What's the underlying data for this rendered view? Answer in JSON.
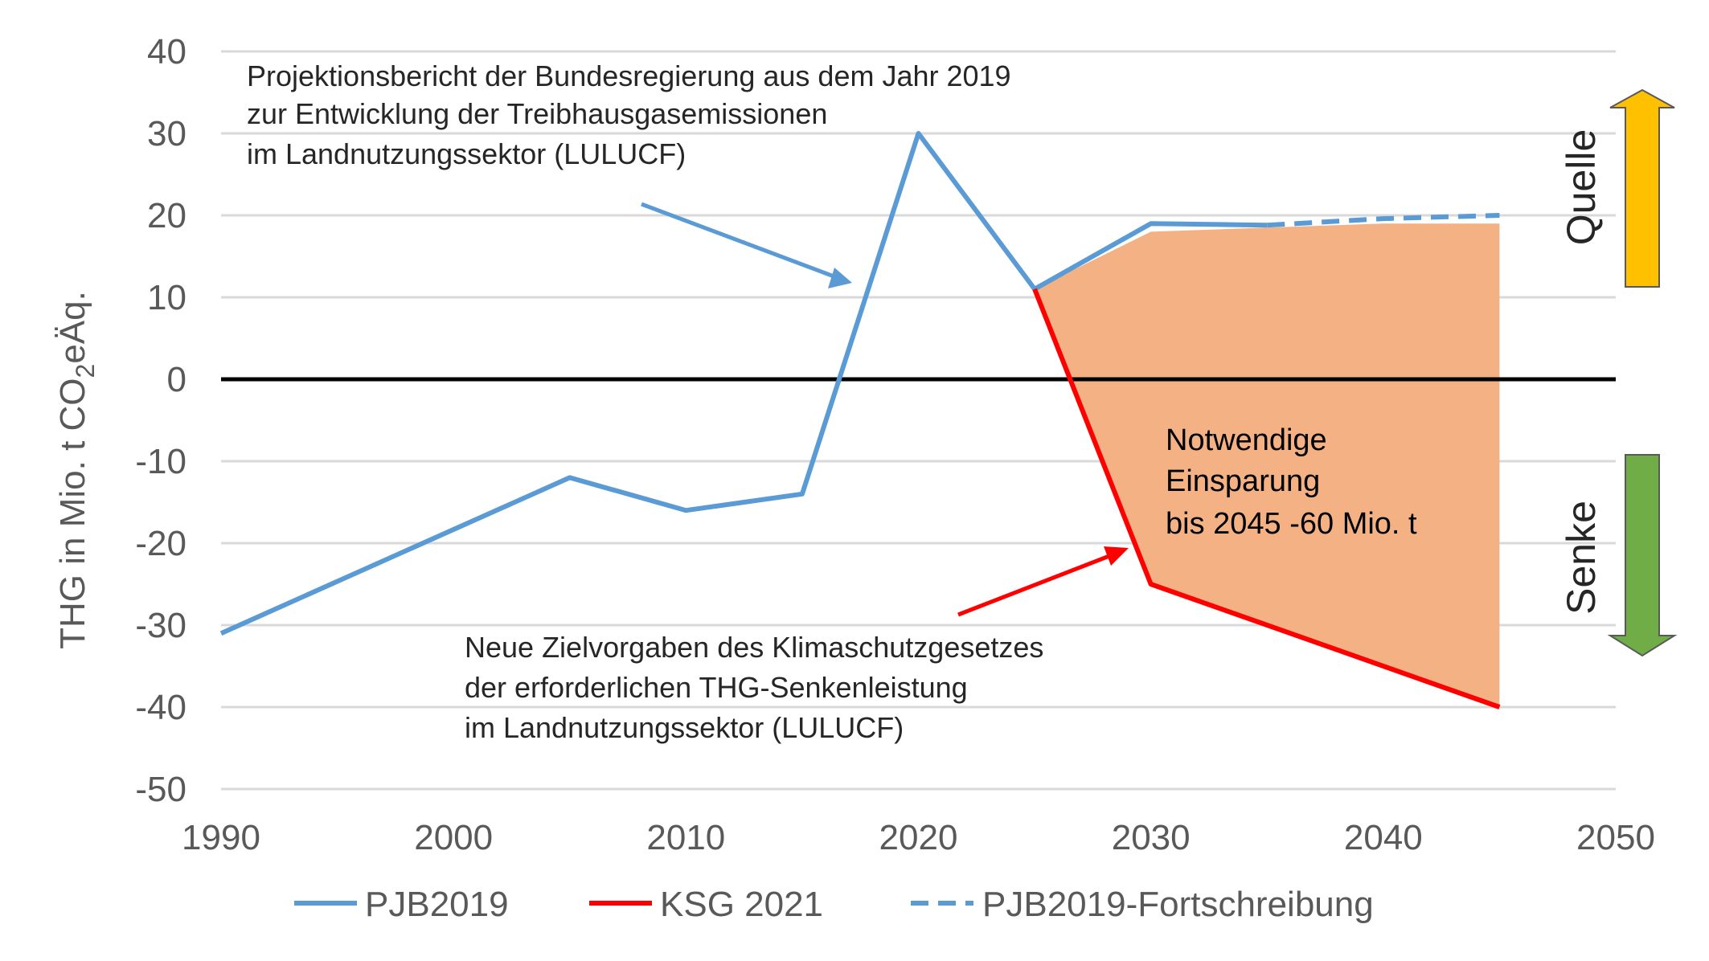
{
  "chart_data": {
    "type": "line",
    "title": "",
    "xlabel": "",
    "ylabel_parts": [
      "THG in Mio. t CO",
      "2",
      "eÄq."
    ],
    "xlim": [
      1990,
      2050
    ],
    "ylim": [
      -50,
      40
    ],
    "x_ticks": [
      1990,
      2000,
      2010,
      2020,
      2030,
      2040,
      2050
    ],
    "y_ticks": [
      40,
      30,
      20,
      10,
      0,
      -10,
      -20,
      -30,
      -40,
      -50
    ],
    "grid": "horizontal",
    "series": [
      {
        "name": "PJB2019",
        "color": "#5B9BD5",
        "style": "solid",
        "points": [
          [
            1990,
            -31
          ],
          [
            2005,
            -12
          ],
          [
            2010,
            -16
          ],
          [
            2015,
            -14
          ],
          [
            2020,
            30
          ],
          [
            2025,
            11
          ],
          [
            2030,
            19
          ],
          [
            2035,
            18.8
          ]
        ]
      },
      {
        "name": "KSG 2021",
        "color": "#FF0000",
        "style": "solid",
        "points": [
          [
            2025,
            11
          ],
          [
            2030,
            -25
          ],
          [
            2045,
            -40
          ]
        ]
      },
      {
        "name": "PJB2019-Fortschreibung",
        "color": "#5B9BD5",
        "style": "dashed",
        "points": [
          [
            2035,
            18.8
          ],
          [
            2040,
            19.6
          ],
          [
            2045,
            20
          ]
        ]
      }
    ],
    "fill_area": {
      "color": "#F4B183",
      "upper": [
        [
          2025,
          11
        ],
        [
          2030,
          18
        ],
        [
          2035,
          18.5
        ],
        [
          2040,
          19
        ],
        [
          2045,
          19
        ]
      ],
      "lower": [
        [
          2025,
          11
        ],
        [
          2030,
          -25
        ],
        [
          2045,
          -40
        ]
      ]
    },
    "annotations": {
      "pjb_lines": [
        "Projektionsbericht der Bundesregierung aus dem Jahr 2019",
        "zur Entwicklung der Treibhausgasemissionen",
        "im Landnutzungssektor (LULUCF)"
      ],
      "savings_lines": [
        "Notwendige",
        "Einsparung",
        "bis 2045 -60 Mio. t"
      ],
      "ksg_lines": [
        "Neue Zielvorgaben des Klimaschutzgesetzes",
        "der erforderlichen THG-Senkenleistung",
        "im Landnutzungssektor (LULUCF)"
      ]
    },
    "side_labels": {
      "source": "Quelle",
      "sink": "Senke",
      "source_color": "#FFC000",
      "sink_color": "#70AD47"
    },
    "legend": {
      "placement": "bottom",
      "entries": [
        "PJB2019",
        "KSG 2021",
        "PJB2019-Fortschreibung"
      ]
    }
  }
}
